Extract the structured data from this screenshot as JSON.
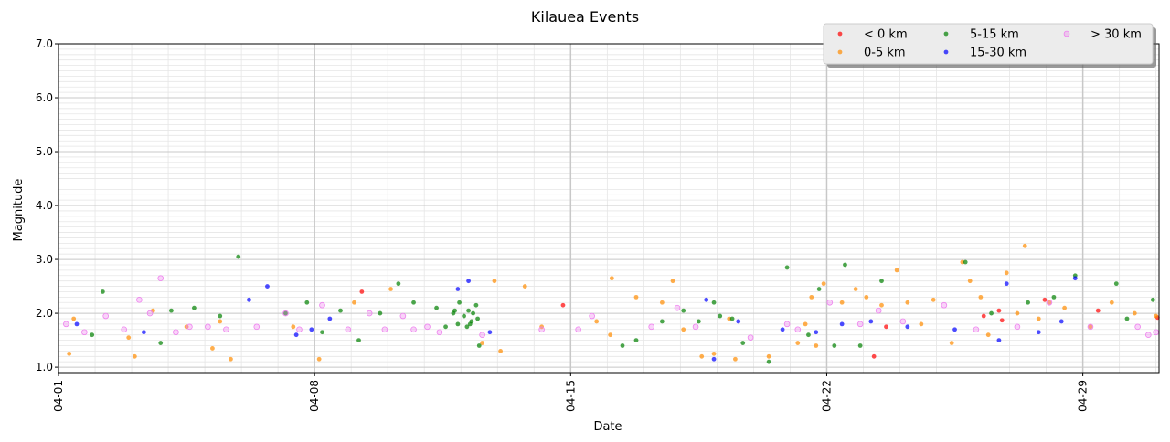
{
  "chart_data": {
    "type": "scatter",
    "title": "Kilauea Events",
    "xlabel": "Date",
    "ylabel": "Magnitude",
    "x_axis_type": "date",
    "xlim": [
      "2024-04-01",
      "2024-05-01T02:00"
    ],
    "ylim": [
      0.9,
      7.0
    ],
    "x_ticks": [
      "2024-04-01",
      "2024-04-08",
      "2024-04-15",
      "2024-04-22",
      "2024-04-29"
    ],
    "x_tick_labels": [
      "04-01",
      "04-08",
      "04-15",
      "04-22",
      "04-29"
    ],
    "y_ticks": [
      1.0,
      2.0,
      3.0,
      4.0,
      5.0,
      6.0,
      7.0
    ],
    "y_tick_labels": [
      "1.0",
      "2.0",
      "3.0",
      "4.0",
      "5.0",
      "6.0",
      "7.0"
    ],
    "grid": true,
    "minor_grid": true,
    "legend_position": "top-right",
    "series": [
      {
        "name": "< 0 km",
        "color": "#ff0000",
        "points": [
          [
            "2024-04-09T07:00",
            2.4
          ],
          [
            "2024-04-14T19:00",
            2.15
          ],
          [
            "2024-04-23T07:00",
            1.2
          ],
          [
            "2024-04-26T07:00",
            1.95
          ],
          [
            "2024-04-26T17:00",
            2.05
          ],
          [
            "2024-04-26T19:00",
            1.87
          ],
          [
            "2024-04-27T23:00",
            2.25
          ],
          [
            "2024-04-29T10:00",
            2.05
          ],
          [
            "2024-05-01T01:00",
            1.92
          ],
          [
            "2024-04-23T15:00",
            1.75
          ]
        ]
      },
      {
        "name": "0-5 km",
        "color": "#ff8c00",
        "points": [
          [
            "2024-04-01T07:00",
            1.25
          ],
          [
            "2024-04-01T10:00",
            1.9
          ],
          [
            "2024-04-02T22:00",
            1.55
          ],
          [
            "2024-04-03T02:00",
            1.2
          ],
          [
            "2024-04-03T14:00",
            2.05
          ],
          [
            "2024-04-04T12:00",
            1.75
          ],
          [
            "2024-04-05T05:00",
            1.35
          ],
          [
            "2024-04-05T10:00",
            1.85
          ],
          [
            "2024-04-05T17:00",
            1.15
          ],
          [
            "2024-04-07T10:00",
            1.75
          ],
          [
            "2024-04-08T03:00",
            1.15
          ],
          [
            "2024-04-09T02:00",
            2.2
          ],
          [
            "2024-04-10T02:00",
            2.45
          ],
          [
            "2024-04-12T14:00",
            1.45
          ],
          [
            "2024-04-12T22:00",
            2.6
          ],
          [
            "2024-04-13T02:00",
            1.3
          ],
          [
            "2024-04-13T18:00",
            2.5
          ],
          [
            "2024-04-14T05:00",
            1.75
          ],
          [
            "2024-04-15T17:00",
            1.85
          ],
          [
            "2024-04-16T02:00",
            1.6
          ],
          [
            "2024-04-16T03:00",
            2.65
          ],
          [
            "2024-04-16T19:00",
            2.3
          ],
          [
            "2024-04-17T12:00",
            2.2
          ],
          [
            "2024-04-17T19:00",
            2.6
          ],
          [
            "2024-04-18T02:00",
            1.7
          ],
          [
            "2024-04-18T14:00",
            1.2
          ],
          [
            "2024-04-18T22:00",
            1.25
          ],
          [
            "2024-04-19T08:00",
            1.9
          ],
          [
            "2024-04-19T12:00",
            1.15
          ],
          [
            "2024-04-20T10:00",
            1.2
          ],
          [
            "2024-04-21T05:00",
            1.45
          ],
          [
            "2024-04-21T10:00",
            1.8
          ],
          [
            "2024-04-21T14:00",
            2.3
          ],
          [
            "2024-04-21T17:00",
            1.4
          ],
          [
            "2024-04-21T22:00",
            2.55
          ],
          [
            "2024-04-22T10:00",
            2.2
          ],
          [
            "2024-04-22T19:00",
            2.45
          ],
          [
            "2024-04-23T02:00",
            2.3
          ],
          [
            "2024-04-23T12:00",
            2.15
          ],
          [
            "2024-04-23T22:00",
            2.8
          ],
          [
            "2024-04-24T05:00",
            2.2
          ],
          [
            "2024-04-24T14:00",
            1.8
          ],
          [
            "2024-04-24T22:00",
            2.25
          ],
          [
            "2024-04-25T10:00",
            1.45
          ],
          [
            "2024-04-25T17:00",
            2.95
          ],
          [
            "2024-04-25T22:00",
            2.6
          ],
          [
            "2024-04-26T05:00",
            2.3
          ],
          [
            "2024-04-26T10:00",
            1.6
          ],
          [
            "2024-04-26T22:00",
            2.75
          ],
          [
            "2024-04-27T05:00",
            2.0
          ],
          [
            "2024-04-27T10:00",
            3.25
          ],
          [
            "2024-04-27T19:00",
            1.9
          ],
          [
            "2024-04-28T02:00",
            2.2
          ],
          [
            "2024-04-28T12:00",
            2.1
          ],
          [
            "2024-04-29T05:00",
            1.75
          ],
          [
            "2024-04-29T19:00",
            2.2
          ],
          [
            "2024-04-30T10:00",
            2.0
          ],
          [
            "2024-05-01T00:00",
            1.95
          ]
        ]
      },
      {
        "name": "5-15 km",
        "color": "#008000",
        "points": [
          [
            "2024-04-01T22:00",
            1.6
          ],
          [
            "2024-04-02T05:00",
            2.4
          ],
          [
            "2024-04-03T19:00",
            1.45
          ],
          [
            "2024-04-04T02:00",
            2.05
          ],
          [
            "2024-04-04T17:00",
            2.1
          ],
          [
            "2024-04-05T10:00",
            1.95
          ],
          [
            "2024-04-05T22:00",
            3.05
          ],
          [
            "2024-04-07T05:00",
            2.0
          ],
          [
            "2024-04-07T19:00",
            2.2
          ],
          [
            "2024-04-08T05:00",
            1.65
          ],
          [
            "2024-04-08T17:00",
            2.05
          ],
          [
            "2024-04-09T05:00",
            1.5
          ],
          [
            "2024-04-09T19:00",
            2.0
          ],
          [
            "2024-04-10T07:00",
            2.55
          ],
          [
            "2024-04-10T17:00",
            2.2
          ],
          [
            "2024-04-11T08:00",
            2.1
          ],
          [
            "2024-04-11T14:00",
            1.75
          ],
          [
            "2024-04-11T19:00",
            2.0
          ],
          [
            "2024-04-11T22:00",
            1.8
          ],
          [
            "2024-04-12T02:00",
            1.95
          ],
          [
            "2024-04-12T05:00",
            2.05
          ],
          [
            "2024-04-12T07:00",
            1.85
          ],
          [
            "2024-04-12T10:00",
            2.15
          ],
          [
            "2024-04-12T12:00",
            1.4
          ],
          [
            "2024-04-11T20:00",
            2.05
          ],
          [
            "2024-04-12T04:00",
            1.75
          ],
          [
            "2024-04-12T08:00",
            2.0
          ],
          [
            "2024-04-12T11:00",
            1.9
          ],
          [
            "2024-04-11T23:00",
            2.2
          ],
          [
            "2024-04-12T06:00",
            1.8
          ],
          [
            "2024-04-16T10:00",
            1.4
          ],
          [
            "2024-04-16T19:00",
            1.5
          ],
          [
            "2024-04-17T12:00",
            1.85
          ],
          [
            "2024-04-18T02:00",
            2.05
          ],
          [
            "2024-04-18T12:00",
            1.85
          ],
          [
            "2024-04-18T22:00",
            2.2
          ],
          [
            "2024-04-19T02:00",
            1.95
          ],
          [
            "2024-04-19T10:00",
            1.9
          ],
          [
            "2024-04-19T17:00",
            1.45
          ],
          [
            "2024-04-20T10:00",
            1.1
          ],
          [
            "2024-04-20T22:00",
            2.85
          ],
          [
            "2024-04-21T12:00",
            1.6
          ],
          [
            "2024-04-21T19:00",
            2.45
          ],
          [
            "2024-04-22T05:00",
            1.4
          ],
          [
            "2024-04-22T12:00",
            2.9
          ],
          [
            "2024-04-22T22:00",
            1.4
          ],
          [
            "2024-04-23T12:00",
            2.6
          ],
          [
            "2024-04-25T19:00",
            2.95
          ],
          [
            "2024-04-26T12:00",
            2.0
          ],
          [
            "2024-04-27T12:00",
            2.2
          ],
          [
            "2024-04-28T05:00",
            2.3
          ],
          [
            "2024-04-28T19:00",
            2.7
          ],
          [
            "2024-04-29T22:00",
            2.55
          ],
          [
            "2024-04-30T22:00",
            2.25
          ],
          [
            "2024-04-30T05:00",
            1.9
          ]
        ]
      },
      {
        "name": "15-30 km",
        "color": "#0000ff",
        "points": [
          [
            "2024-04-01T12:00",
            1.8
          ],
          [
            "2024-04-03T08:00",
            1.65
          ],
          [
            "2024-04-06T05:00",
            2.25
          ],
          [
            "2024-04-06T17:00",
            2.5
          ],
          [
            "2024-04-07T12:00",
            1.6
          ],
          [
            "2024-04-07T22:00",
            1.7
          ],
          [
            "2024-04-08T10:00",
            1.9
          ],
          [
            "2024-04-11T22:00",
            2.45
          ],
          [
            "2024-04-12T05:00",
            2.6
          ],
          [
            "2024-04-12T19:00",
            1.65
          ],
          [
            "2024-04-18T17:00",
            2.25
          ],
          [
            "2024-04-18T22:00",
            1.15
          ],
          [
            "2024-04-19T14:00",
            1.85
          ],
          [
            "2024-04-20T19:00",
            1.7
          ],
          [
            "2024-04-21T17:00",
            1.65
          ],
          [
            "2024-04-22T10:00",
            1.8
          ],
          [
            "2024-04-23T05:00",
            1.85
          ],
          [
            "2024-04-24T05:00",
            1.75
          ],
          [
            "2024-04-25T12:00",
            1.7
          ],
          [
            "2024-04-26T17:00",
            1.5
          ],
          [
            "2024-04-26T22:00",
            2.55
          ],
          [
            "2024-04-27T19:00",
            1.65
          ],
          [
            "2024-04-28T10:00",
            1.85
          ],
          [
            "2024-04-28T19:00",
            2.65
          ]
        ]
      },
      {
        "name": "> 30 km",
        "color": "#ee82ee",
        "points": [
          [
            "2024-04-01T05:00",
            1.8
          ],
          [
            "2024-04-01T17:00",
            1.65
          ],
          [
            "2024-04-02T07:00",
            1.95
          ],
          [
            "2024-04-02T19:00",
            1.7
          ],
          [
            "2024-04-03T05:00",
            2.25
          ],
          [
            "2024-04-03T12:00",
            2.0
          ],
          [
            "2024-04-03T19:00",
            2.65
          ],
          [
            "2024-04-04T05:00",
            1.65
          ],
          [
            "2024-04-04T14:00",
            1.75
          ],
          [
            "2024-04-05T02:00",
            1.75
          ],
          [
            "2024-04-05T14:00",
            1.7
          ],
          [
            "2024-04-06T10:00",
            1.75
          ],
          [
            "2024-04-07T05:00",
            2.0
          ],
          [
            "2024-04-07T14:00",
            1.7
          ],
          [
            "2024-04-08T05:00",
            2.15
          ],
          [
            "2024-04-08T22:00",
            1.7
          ],
          [
            "2024-04-09T12:00",
            2.0
          ],
          [
            "2024-04-09T22:00",
            1.7
          ],
          [
            "2024-04-10T10:00",
            1.95
          ],
          [
            "2024-04-10T17:00",
            1.7
          ],
          [
            "2024-04-11T02:00",
            1.75
          ],
          [
            "2024-04-11T10:00",
            1.65
          ],
          [
            "2024-04-12T14:00",
            1.6
          ],
          [
            "2024-04-14T05:00",
            1.7
          ],
          [
            "2024-04-15T05:00",
            1.7
          ],
          [
            "2024-04-15T14:00",
            1.95
          ],
          [
            "2024-04-17T05:00",
            1.75
          ],
          [
            "2024-04-17T22:00",
            2.1
          ],
          [
            "2024-04-18T10:00",
            1.75
          ],
          [
            "2024-04-19T22:00",
            1.55
          ],
          [
            "2024-04-20T22:00",
            1.8
          ],
          [
            "2024-04-21T05:00",
            1.7
          ],
          [
            "2024-04-22T02:00",
            2.2
          ],
          [
            "2024-04-22T22:00",
            1.8
          ],
          [
            "2024-04-23T10:00",
            2.05
          ],
          [
            "2024-04-24T02:00",
            1.85
          ],
          [
            "2024-04-25T05:00",
            2.15
          ],
          [
            "2024-04-26T02:00",
            1.7
          ],
          [
            "2024-04-27T05:00",
            1.75
          ],
          [
            "2024-04-28T02:00",
            2.2
          ],
          [
            "2024-04-29T05:00",
            1.75
          ],
          [
            "2024-04-30T12:00",
            1.75
          ],
          [
            "2024-05-01T00:00",
            1.65
          ],
          [
            "2024-04-30T19:00",
            1.6
          ]
        ]
      }
    ]
  }
}
